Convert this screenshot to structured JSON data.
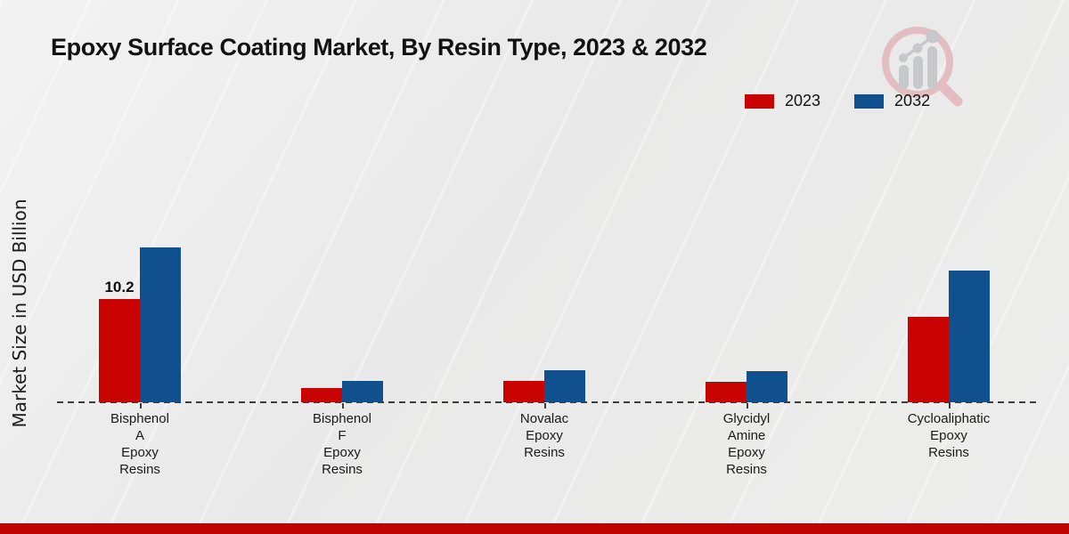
{
  "page": {
    "title": "Epoxy Surface Coating Market, By Resin Type, 2023 & 2032",
    "ylabel": "Market Size in USD Billion"
  },
  "legend": {
    "items": [
      {
        "label": "2023",
        "color": "#c90202"
      },
      {
        "label": "2032",
        "color": "#11508e"
      }
    ]
  },
  "colors": {
    "series_2023": "#c90202",
    "series_2032": "#11508e",
    "footer_strip": "#bd0300",
    "baseline": "#3c3c3c",
    "background": "#ededec"
  },
  "logo": {
    "name": "magnifier-bar-chart-logo"
  },
  "footer": {
    "strip_color": "#bd0300"
  },
  "chart_data": {
    "type": "bar",
    "title": "Epoxy Surface Coating Market, By Resin Type, 2023 & 2032",
    "xlabel": "",
    "ylabel": "Market Size in USD Billion",
    "categories": [
      "Bisphenol A Epoxy Resins",
      "Bisphenol F Epoxy Resins",
      "Novalac Epoxy Resins",
      "Glycidyl Amine Epoxy Resins",
      "Cycloaliphatic Epoxy Resins"
    ],
    "category_label_lines": [
      [
        "Bisphenol",
        "A",
        "Epoxy",
        "Resins"
      ],
      [
        "Bisphenol",
        "F",
        "Epoxy",
        "Resins"
      ],
      [
        "Novalac",
        "Epoxy",
        "Resins"
      ],
      [
        "Glycidyl",
        "Amine",
        "Epoxy",
        "Resins"
      ],
      [
        "Cycloaliphatic",
        "Epoxy",
        "Resins"
      ]
    ],
    "series": [
      {
        "name": "2023",
        "color": "#c90202",
        "values": [
          10.2,
          1.4,
          2.1,
          2.0,
          8.4
        ]
      },
      {
        "name": "2032",
        "color": "#11508e",
        "values": [
          15.3,
          2.1,
          3.2,
          3.1,
          13.0
        ]
      }
    ],
    "data_labels": [
      {
        "series": "2023",
        "category_index": 0,
        "text": "10.2"
      }
    ],
    "ylim": [
      0,
      16
    ],
    "grid": false,
    "legend_position": "top-right",
    "baseline_style": "dashed",
    "y_axis_ticks_visible": false
  }
}
